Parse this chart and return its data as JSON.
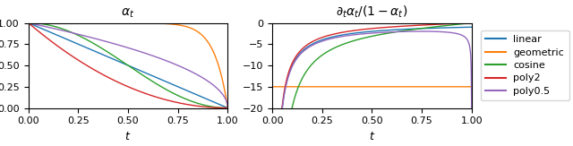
{
  "title_left": "$\\alpha_t$",
  "title_right": "$\\partial_t \\alpha_t / (1 - \\alpha_t)$",
  "xlabel": "t",
  "xlim": [
    0.0,
    1.0
  ],
  "ylim_left": [
    0.0,
    1.0
  ],
  "ylim_right": [
    -20,
    0
  ],
  "colors": {
    "linear": "#1f77b4",
    "geometric": "#ff7f0e",
    "cosine": "#2ca02c",
    "poly2": "#d62728",
    "poly0.5": "#9467bd"
  },
  "legend_labels": [
    "linear",
    "geometric",
    "cosine",
    "poly2",
    "poly0.5"
  ],
  "figsize": [
    6.4,
    1.63
  ],
  "dpi": 100,
  "geometric_lambda": 15.0,
  "cosine_s": 0.008
}
